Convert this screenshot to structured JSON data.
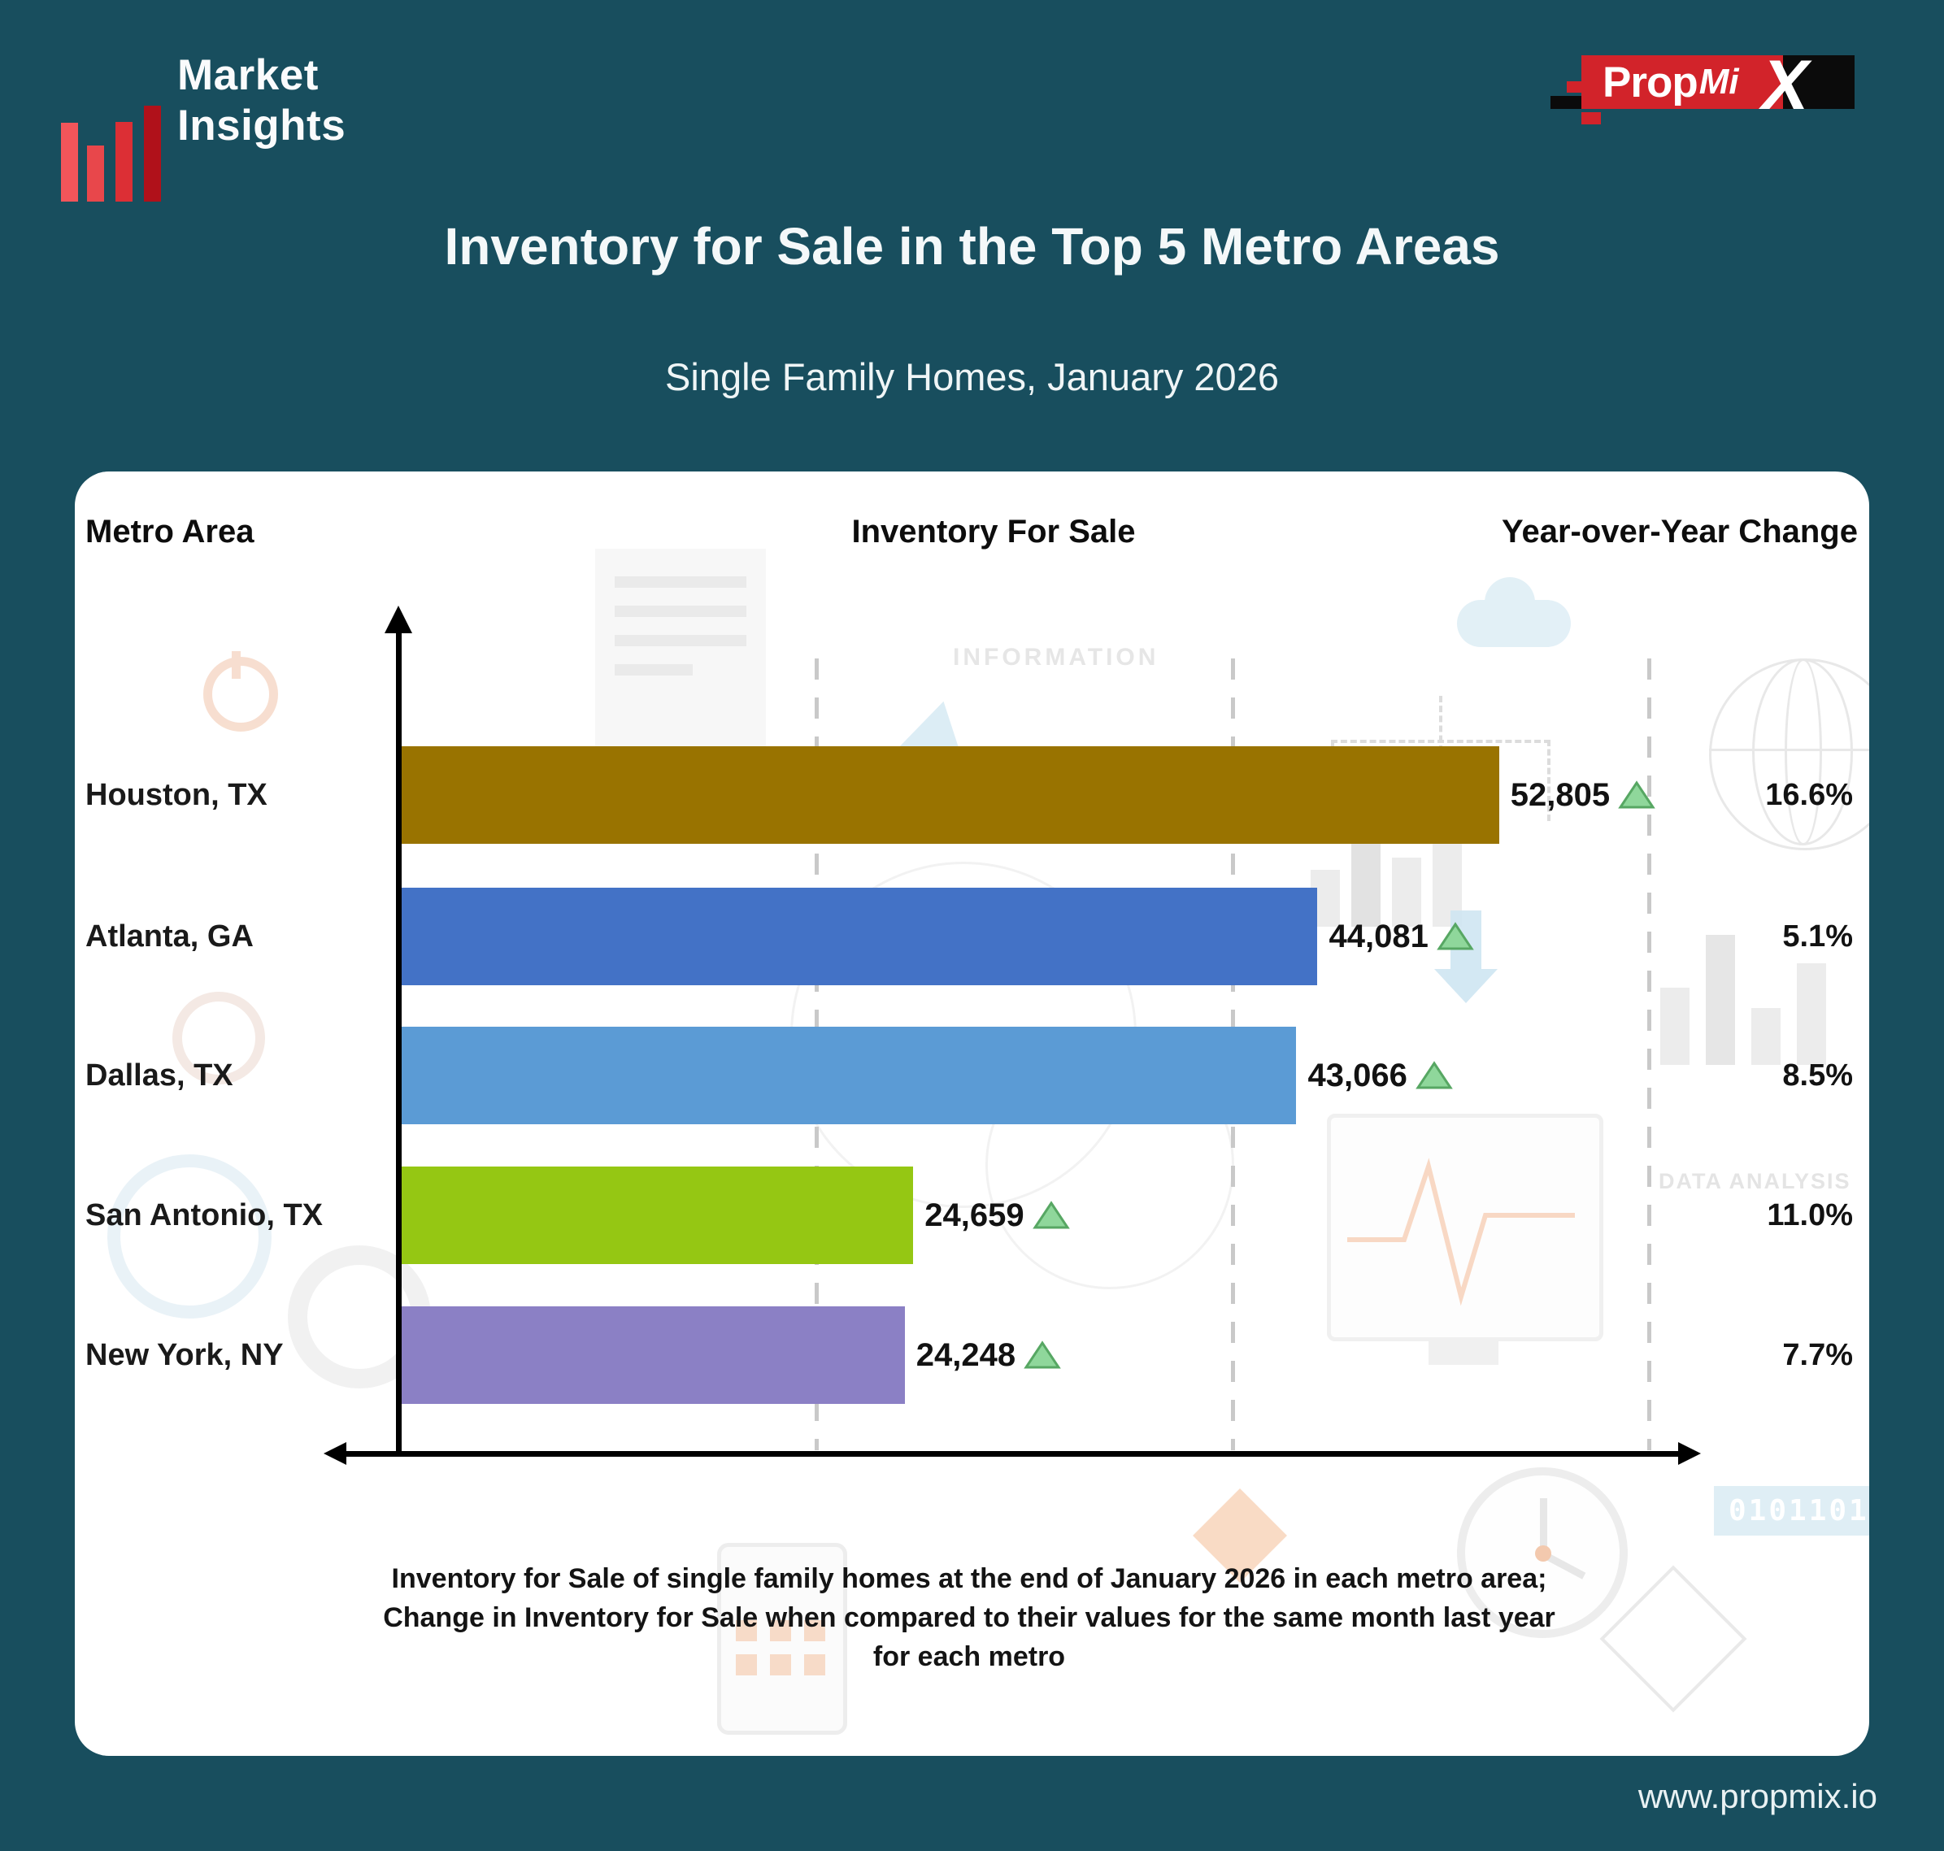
{
  "brand": {
    "market_insights_line1": "Market",
    "market_insights_line2": "Insights",
    "propmix_prop": "Prop",
    "propmix_mi": "Mi",
    "propmix_x": "X"
  },
  "header": {
    "title": "Inventory for Sale in the Top 5 Metro Areas",
    "subtitle": "Single Family Homes, January 2026"
  },
  "columns": {
    "metro": "Metro Area",
    "inventory": "Inventory For Sale",
    "yoy": "Year-over-Year Change"
  },
  "chart_data": {
    "type": "bar",
    "orientation": "horizontal",
    "title": "Inventory for Sale in the Top 5 Metro Areas",
    "subtitle": "Single Family Homes, January 2026",
    "categories": [
      "Houston, TX",
      "Atlanta, GA",
      "Dallas, TX",
      "San Antonio, TX",
      "New York, NY"
    ],
    "values": [
      52805,
      44081,
      43066,
      24659,
      24248
    ],
    "value_labels": [
      "52,805",
      "44,081",
      "43,066",
      "24,659",
      "24,248"
    ],
    "yoy_change": [
      "16.6%",
      "5.1%",
      "8.5%",
      "11.0%",
      "7.7%"
    ],
    "bar_colors": [
      "#997300",
      "#4372C6",
      "#5B9BD5",
      "#95C713",
      "#8B80C5"
    ],
    "trend_direction": "up",
    "trend_icon": "green-up-triangle",
    "xlim": [
      0,
      62500
    ],
    "gridlines": [
      20000,
      40000,
      60000
    ],
    "grid": "dashed-vertical",
    "legend": "none"
  },
  "caption": {
    "line1": "Inventory for Sale of single family homes at the end of January 2026 in each metro area;",
    "line2": "Change in Inventory for Sale when compared to their values for the same month last year",
    "line3": "for each metro"
  },
  "watermarks": {
    "information": "INFORMATION",
    "data_analysis": "DATA ANALYSIS",
    "binary": "0101101"
  },
  "footer": {
    "website": "www.propmix.io"
  },
  "colors": {
    "background": "#184E5E",
    "card": "#FFFFFF",
    "accent_red": "#D2232A",
    "axis": "#000000",
    "gridline": "#C9C9C9",
    "triangle_fill": "#8FD79B",
    "triangle_stroke": "#57A763"
  }
}
